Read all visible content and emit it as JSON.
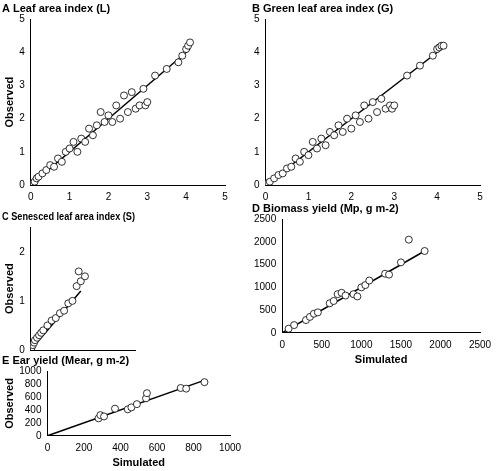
{
  "chart_data": [
    {
      "type": "scatter",
      "title": "A Leaf area index (L)",
      "y_label": "Observed",
      "xlim": [
        0,
        5
      ],
      "xticks": [
        0,
        1,
        2,
        3,
        4,
        5
      ],
      "ylim": [
        0,
        5
      ],
      "yticks": [
        0,
        1,
        2,
        3,
        4,
        5
      ],
      "grid": false,
      "series": [
        {
          "type": "scatter",
          "marker": "circle",
          "color": "#000000",
          "x": [
            0.05,
            0.1,
            0.15,
            0.2,
            0.3,
            0.4,
            0.5,
            0.6,
            0.7,
            0.8,
            0.9,
            1.0,
            1.1,
            1.2,
            1.3,
            1.4,
            1.5,
            1.6,
            1.7,
            1.8,
            1.9,
            2.0,
            2.1,
            2.2,
            2.3,
            2.4,
            2.5,
            2.6,
            2.7,
            2.8,
            2.9,
            2.95,
            3.0,
            3.2,
            3.5,
            3.8,
            3.9,
            4.0,
            4.05,
            4.1
          ],
          "y": [
            0.05,
            0.1,
            0.2,
            0.25,
            0.35,
            0.45,
            0.6,
            0.55,
            0.8,
            0.7,
            1.0,
            1.1,
            1.3,
            1.0,
            1.4,
            1.3,
            1.7,
            1.5,
            1.8,
            2.2,
            1.9,
            2.1,
            1.9,
            2.4,
            2.0,
            2.7,
            2.2,
            2.8,
            2.3,
            2.4,
            2.9,
            2.4,
            2.5,
            3.3,
            3.5,
            3.7,
            3.9,
            4.1,
            4.2,
            4.3
          ]
        },
        {
          "type": "line",
          "line_style": "solid",
          "color": "#000000",
          "x": [
            0,
            4.1
          ],
          "y": [
            0,
            4.1
          ]
        }
      ]
    },
    {
      "type": "scatter",
      "title": "B Green leaf area index (G)",
      "xlim": [
        0,
        5
      ],
      "xticks": [
        0,
        1,
        2,
        3,
        4,
        5
      ],
      "ylim": [
        0,
        5
      ],
      "yticks": [
        0,
        1,
        2,
        3,
        4,
        5
      ],
      "grid": false,
      "series": [
        {
          "type": "scatter",
          "marker": "circle",
          "color": "#000000",
          "x": [
            0.05,
            0.1,
            0.2,
            0.3,
            0.4,
            0.5,
            0.6,
            0.7,
            0.8,
            0.9,
            1.0,
            1.1,
            1.2,
            1.3,
            1.4,
            1.5,
            1.6,
            1.7,
            1.8,
            1.9,
            2.0,
            2.1,
            2.2,
            2.3,
            2.4,
            2.5,
            2.6,
            2.7,
            2.8,
            2.9,
            2.95,
            3.0,
            3.3,
            3.6,
            3.9,
            4.0,
            4.05,
            4.1,
            4.15
          ],
          "y": [
            0.05,
            0.1,
            0.2,
            0.3,
            0.35,
            0.5,
            0.55,
            0.8,
            0.7,
            1.0,
            0.9,
            1.3,
            1.1,
            1.4,
            1.2,
            1.6,
            1.5,
            1.8,
            1.6,
            2.0,
            1.7,
            2.1,
            1.9,
            2.4,
            2.0,
            2.5,
            2.2,
            2.6,
            2.3,
            2.4,
            2.3,
            2.4,
            3.3,
            3.6,
            3.9,
            4.1,
            4.15,
            4.2,
            4.2
          ]
        },
        {
          "type": "line",
          "line_style": "solid",
          "color": "#000000",
          "x": [
            0,
            4.2
          ],
          "y": [
            0,
            4.2
          ]
        }
      ]
    },
    {
      "type": "scatter",
      "title": "C Senesced leaf area index (S)",
      "y_label": "Observed",
      "tick_labels": "y",
      "xlim": [
        0,
        2.5
      ],
      "ylim": [
        0,
        2.5
      ],
      "yticks": [
        0,
        1,
        2
      ],
      "grid": false,
      "series": [
        {
          "type": "scatter",
          "marker": "circle",
          "color": "#000000",
          "x": [
            0.02,
            0.05,
            0.08,
            0.1,
            0.15,
            0.2,
            0.25,
            0.3,
            0.4,
            0.5,
            0.6,
            0.7,
            0.8,
            0.9,
            1.0,
            1.1,
            1.15,
            1.2,
            1.3
          ],
          "y": [
            0.05,
            0.1,
            0.15,
            0.2,
            0.25,
            0.3,
            0.35,
            0.4,
            0.5,
            0.6,
            0.65,
            0.75,
            0.8,
            0.95,
            1.0,
            1.3,
            1.6,
            1.4,
            1.5
          ]
        },
        {
          "type": "line",
          "line_style": "solid",
          "color": "#000000",
          "x": [
            0,
            1.2
          ],
          "y": [
            0,
            1.2
          ]
        }
      ]
    },
    {
      "type": "scatter",
      "title": "D Biomass yield (Mp, g m-2)",
      "x_label": "Simulated",
      "xlim": [
        0,
        2500
      ],
      "xticks": [
        0,
        500,
        1000,
        1500,
        2000,
        2500
      ],
      "ylim": [
        0,
        2500
      ],
      "yticks": [
        0,
        500,
        1000,
        1500,
        2000,
        2500
      ],
      "grid": false,
      "series": [
        {
          "type": "scatter",
          "marker": "circle",
          "color": "#000000",
          "x": [
            80,
            150,
            300,
            350,
            400,
            450,
            600,
            650,
            700,
            750,
            800,
            900,
            950,
            1000,
            1050,
            1100,
            1300,
            1350,
            1500,
            1600,
            1800
          ],
          "y": [
            90,
            170,
            280,
            350,
            420,
            450,
            650,
            700,
            850,
            880,
            820,
            850,
            800,
            1000,
            1050,
            1150,
            1300,
            1280,
            1550,
            2050,
            1800
          ]
        },
        {
          "type": "line",
          "line_style": "solid",
          "color": "#000000",
          "x": [
            0,
            1800
          ],
          "y": [
            0,
            1800
          ]
        }
      ]
    },
    {
      "type": "scatter",
      "title": "E Ear yield (Mear, g m-2)",
      "x_label": "Simulated",
      "y_label": "Observed",
      "xlim": [
        0,
        1000
      ],
      "xticks": [
        0,
        200,
        400,
        600,
        800,
        1000
      ],
      "ylim": [
        0,
        1000
      ],
      "yticks": [
        0,
        200,
        400,
        600,
        800,
        1000
      ],
      "grid": false,
      "series": [
        {
          "type": "scatter",
          "marker": "circle",
          "color": "#000000",
          "x": [
            280,
            290,
            310,
            370,
            440,
            460,
            490,
            540,
            545,
            730,
            760,
            860
          ],
          "y": [
            270,
            320,
            300,
            420,
            410,
            440,
            490,
            580,
            660,
            740,
            730,
            830
          ]
        },
        {
          "type": "line",
          "line_style": "solid",
          "color": "#000000",
          "x": [
            0,
            870
          ],
          "y": [
            0,
            870
          ]
        }
      ]
    }
  ]
}
